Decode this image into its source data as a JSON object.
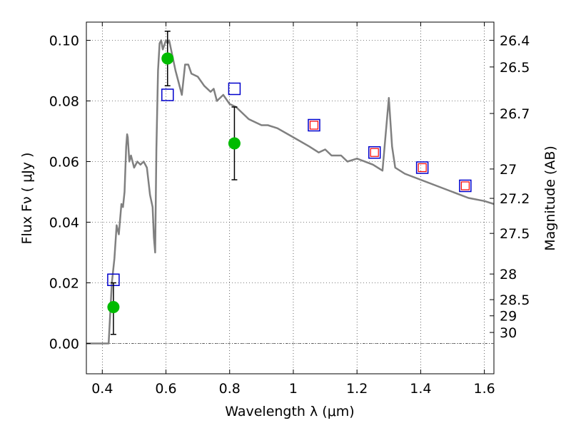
{
  "chart_data": {
    "type": "line",
    "title": "",
    "xlabel": "Wavelength  λ (μm)",
    "ylabel": "Flux  Fν  ( μJy )",
    "y2label": "Magnitude (AB)",
    "xlim": [
      0.35,
      1.63
    ],
    "ylim": [
      -0.01,
      0.106
    ],
    "grid": true,
    "x_ticks": [
      0.4,
      0.6,
      0.8,
      1.0,
      1.2,
      1.4,
      1.6
    ],
    "x_tick_labels": [
      "0.4",
      "0.6",
      "0.8",
      "1",
      "1.2",
      "1.4",
      "1.6"
    ],
    "y_ticks": [
      0.0,
      0.02,
      0.04,
      0.06,
      0.08,
      0.1
    ],
    "y_tick_labels": [
      "0.00",
      "0.02",
      "0.04",
      "0.06",
      "0.08",
      "0.10"
    ],
    "y2_ticks": [
      {
        "mag": 26.4,
        "label": "26.4"
      },
      {
        "mag": 26.5,
        "label": "26.5"
      },
      {
        "mag": 26.7,
        "label": "26.7"
      },
      {
        "mag": 27.0,
        "label": "27"
      },
      {
        "mag": 27.2,
        "label": "27.2"
      },
      {
        "mag": 27.5,
        "label": "27.5"
      },
      {
        "mag": 28.0,
        "label": "28"
      },
      {
        "mag": 28.5,
        "label": "28.5"
      },
      {
        "mag": 29.0,
        "label": "29"
      },
      {
        "mag": 30.0,
        "label": "30"
      }
    ],
    "colors": {
      "sed": "#808080",
      "observed": "#00bb00",
      "model_square": "#0000cc",
      "inner_square": "#ff0000",
      "errorbar": "#000000"
    },
    "series": [
      {
        "type": "line",
        "x": [
          0.35,
          0.413,
          0.42,
          0.43,
          0.438,
          0.445,
          0.452,
          0.46,
          0.465,
          0.47,
          0.475,
          0.478,
          0.48,
          0.485,
          0.49,
          0.5,
          0.51,
          0.52,
          0.53,
          0.54,
          0.55,
          0.558,
          0.562,
          0.566,
          0.57,
          0.575,
          0.58,
          0.585,
          0.59,
          0.6,
          0.605,
          0.61,
          0.62,
          0.63,
          0.64,
          0.65,
          0.66,
          0.67,
          0.68,
          0.7,
          0.72,
          0.74,
          0.75,
          0.76,
          0.78,
          0.8,
          0.82,
          0.84,
          0.86,
          0.88,
          0.9,
          0.92,
          0.95,
          1.0,
          1.05,
          1.08,
          1.1,
          1.12,
          1.15,
          1.17,
          1.2,
          1.25,
          1.28,
          1.3,
          1.31,
          1.32,
          1.35,
          1.4,
          1.45,
          1.5,
          1.55,
          1.6,
          1.63
        ],
        "y": [
          0.0,
          0.0,
          0.0,
          0.02,
          0.028,
          0.039,
          0.036,
          0.046,
          0.045,
          0.05,
          0.065,
          0.069,
          0.068,
          0.06,
          0.062,
          0.058,
          0.06,
          0.059,
          0.06,
          0.058,
          0.049,
          0.045,
          0.035,
          0.03,
          0.064,
          0.09,
          0.099,
          0.1,
          0.097,
          0.1,
          0.099,
          0.1,
          0.095,
          0.09,
          0.086,
          0.082,
          0.092,
          0.092,
          0.089,
          0.088,
          0.085,
          0.083,
          0.084,
          0.08,
          0.082,
          0.079,
          0.078,
          0.076,
          0.074,
          0.073,
          0.072,
          0.072,
          0.071,
          0.068,
          0.065,
          0.063,
          0.064,
          0.062,
          0.062,
          0.06,
          0.061,
          0.059,
          0.057,
          0.081,
          0.065,
          0.058,
          0.056,
          0.054,
          0.052,
          0.05,
          0.048,
          0.047,
          0.046
        ]
      },
      {
        "type": "model_squares",
        "x": [
          0.435,
          0.605,
          0.815,
          1.065,
          1.255,
          1.405,
          1.54
        ],
        "y": [
          0.021,
          0.082,
          0.084,
          0.072,
          0.063,
          0.058,
          0.052
        ]
      },
      {
        "type": "inner_squares",
        "x": [
          1.065,
          1.255,
          1.405,
          1.54
        ],
        "y": [
          0.072,
          0.063,
          0.058,
          0.052
        ]
      },
      {
        "type": "observed",
        "x": [
          0.435,
          0.605,
          0.815
        ],
        "y": [
          0.012,
          0.094,
          0.066
        ],
        "err_low": [
          0.003,
          0.085,
          0.054
        ],
        "err_high": [
          0.02,
          0.103,
          0.078
        ]
      }
    ]
  }
}
